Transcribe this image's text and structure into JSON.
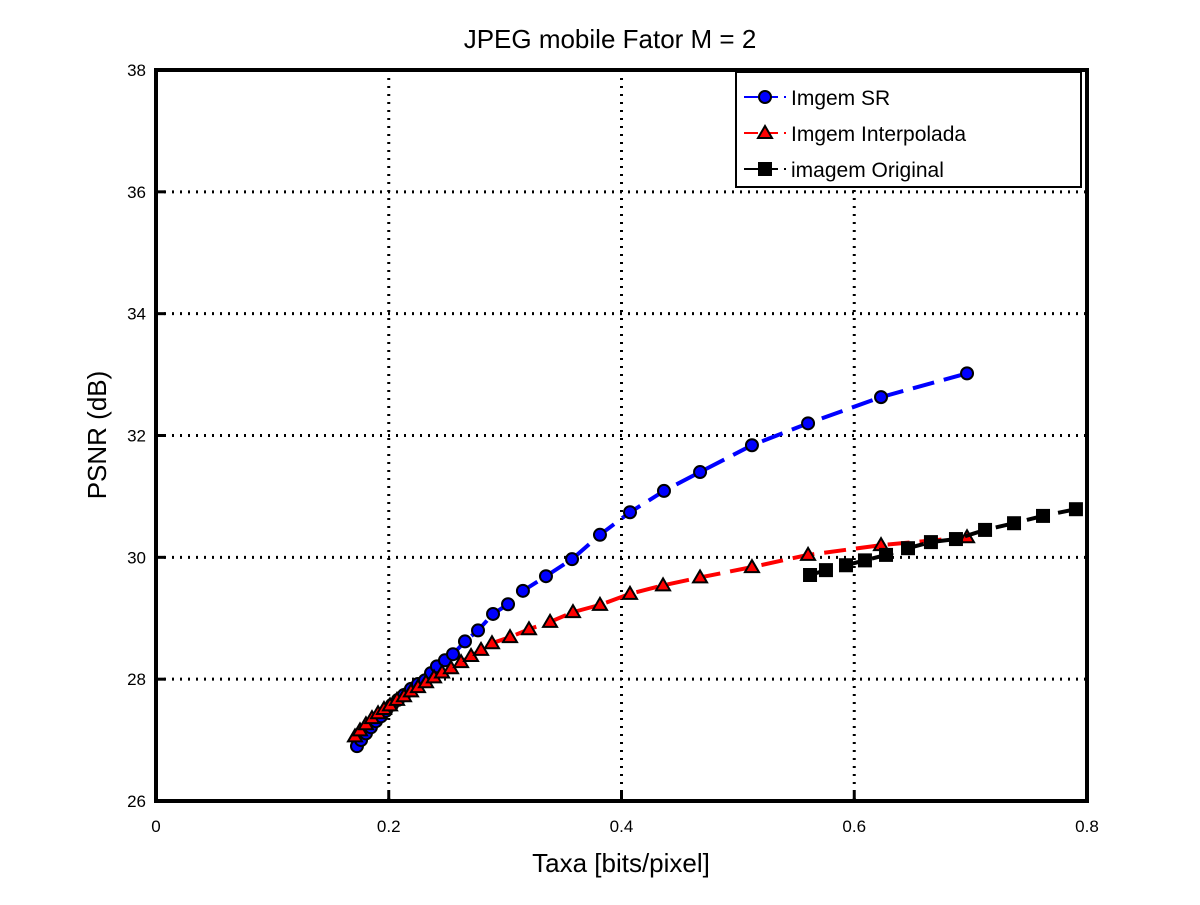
{
  "chart_data": {
    "type": "line",
    "title": "JPEG mobile Fator M = 2",
    "xlabel": "Taxa [bits/pixel]",
    "ylabel": "PSNR (dB)",
    "xlim": [
      0,
      0.8
    ],
    "ylim": [
      26,
      38
    ],
    "xticks": [
      0,
      0.2,
      0.4,
      0.6,
      0.8
    ],
    "yticks": [
      26,
      28,
      30,
      32,
      34,
      36,
      38
    ],
    "grid": true,
    "legend": "upper right",
    "series": [
      {
        "name": "Imgem SR",
        "color": "#0000ff",
        "marker": "circle",
        "x": [
          0.1727,
          0.1762,
          0.1804,
          0.1847,
          0.189,
          0.1933,
          0.1976,
          0.2028,
          0.2079,
          0.2131,
          0.2191,
          0.2251,
          0.2311,
          0.2363,
          0.2414,
          0.2483,
          0.2552,
          0.2655,
          0.2767,
          0.2896,
          0.3025,
          0.3153,
          0.3351,
          0.3575,
          0.3815,
          0.4073,
          0.4365,
          0.4675,
          0.5121,
          0.5603,
          0.623,
          0.6969
        ],
        "values": [
          26.9,
          27.0,
          27.11,
          27.21,
          27.31,
          27.39,
          27.48,
          27.58,
          27.66,
          27.74,
          27.84,
          27.92,
          27.98,
          28.1,
          28.21,
          28.31,
          28.41,
          28.62,
          28.8,
          29.07,
          29.23,
          29.45,
          29.69,
          29.97,
          30.37,
          30.74,
          31.09,
          31.4,
          31.84,
          32.2,
          32.63,
          33.02
        ]
      },
      {
        "name": "Imgem Interpolada",
        "color": "#ff0000",
        "marker": "triangle",
        "x": [
          0.171,
          0.1753,
          0.1804,
          0.1856,
          0.1908,
          0.1959,
          0.2011,
          0.2071,
          0.2131,
          0.2191,
          0.2251,
          0.232,
          0.2389,
          0.2458,
          0.2535,
          0.2621,
          0.2707,
          0.2793,
          0.2887,
          0.3042,
          0.3205,
          0.3386,
          0.3583,
          0.3815,
          0.4073,
          0.4357,
          0.4675,
          0.5121,
          0.5603,
          0.623,
          0.6969
        ],
        "values": [
          27.06,
          27.16,
          27.26,
          27.36,
          27.44,
          27.51,
          27.57,
          27.66,
          27.72,
          27.8,
          27.87,
          27.95,
          28.03,
          28.11,
          28.18,
          28.28,
          28.38,
          28.48,
          28.59,
          28.69,
          28.82,
          28.94,
          29.1,
          29.22,
          29.4,
          29.54,
          29.67,
          29.84,
          30.04,
          30.2,
          30.33
        ]
      },
      {
        "name": "imagem Original",
        "color": "#000000",
        "marker": "square",
        "x": [
          0.562,
          0.5757,
          0.5929,
          0.6092,
          0.6273,
          0.6462,
          0.6659,
          0.6874,
          0.7124,
          0.7373,
          0.7622,
          0.7905
        ],
        "values": [
          29.71,
          29.79,
          29.87,
          29.95,
          30.04,
          30.15,
          30.25,
          30.3,
          30.45,
          30.56,
          30.68,
          30.79
        ]
      }
    ]
  }
}
